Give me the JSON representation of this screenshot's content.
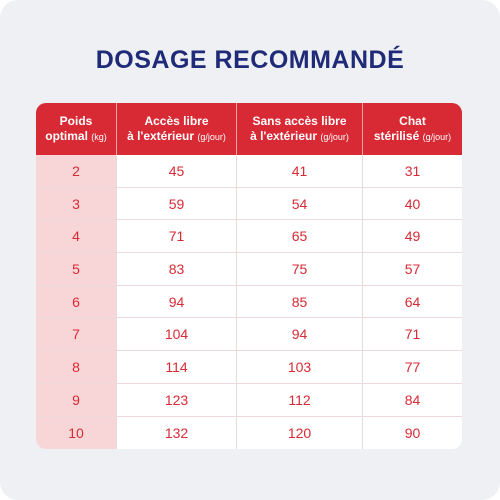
{
  "title": "DOSAGE RECOMMANDÉ",
  "columns": [
    {
      "line1": "Poids",
      "line2": "optimal",
      "unit": "(kg)"
    },
    {
      "line1": "Accès libre",
      "line2": "à l'extérieur",
      "unit": "(g/jour)"
    },
    {
      "line1": "Sans accès libre",
      "line2": "à l'extérieur",
      "unit": "(g/jour)"
    },
    {
      "line1": "Chat",
      "line2": "stérilisé",
      "unit": "(g/jour)"
    }
  ],
  "rows": [
    [
      "2",
      "45",
      "41",
      "31"
    ],
    [
      "3",
      "59",
      "54",
      "40"
    ],
    [
      "4",
      "71",
      "65",
      "49"
    ],
    [
      "5",
      "83",
      "75",
      "57"
    ],
    [
      "6",
      "94",
      "85",
      "64"
    ],
    [
      "7",
      "104",
      "94",
      "71"
    ],
    [
      "8",
      "114",
      "103",
      "77"
    ],
    [
      "9",
      "123",
      "112",
      "84"
    ],
    [
      "10",
      "132",
      "120",
      "90"
    ]
  ],
  "colors": {
    "title": "#1f2b78",
    "header_bg": "#d82a35",
    "value_text": "#d82a35",
    "weight_col_bg": "#f8d6d7",
    "card_bg": "#eef0f3"
  }
}
